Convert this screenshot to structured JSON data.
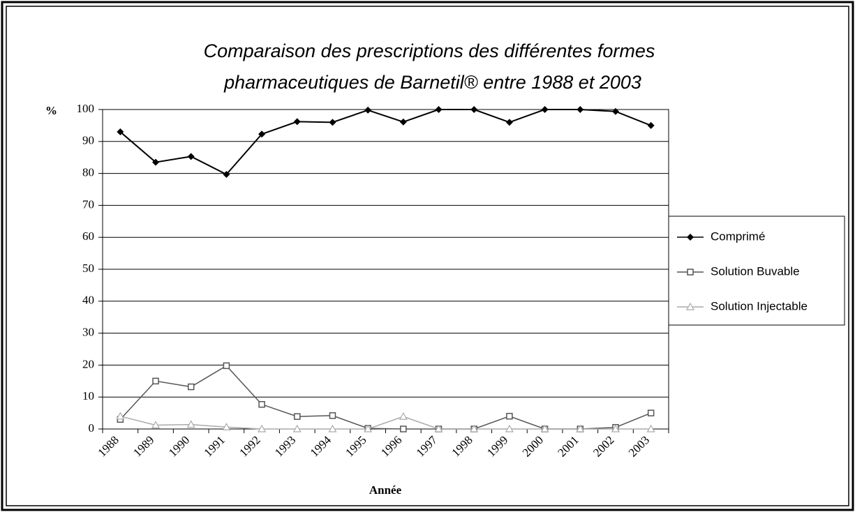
{
  "chart_data": {
    "type": "line",
    "title": [
      "Comparaison des prescriptions des différentes formes",
      "pharmaceutiques de Barnetil® entre 1988 et 2003"
    ],
    "y_label": "%",
    "x_label": "Année",
    "categories": [
      "1988",
      "1989",
      "1990",
      "1991",
      "1992",
      "1993",
      "1994",
      "1995",
      "1996",
      "1997",
      "1998",
      "1999",
      "2000",
      "2001",
      "2002",
      "2003"
    ],
    "series": [
      {
        "name": "Comprimé",
        "color": "#000000",
        "marker": "diamond",
        "values": [
          93,
          83.5,
          85.3,
          79.7,
          92.3,
          96.2,
          96,
          99.8,
          96.1,
          100,
          100,
          96,
          100,
          100,
          99.4,
          95
        ]
      },
      {
        "name": "Solution Buvable",
        "color": "#555555",
        "marker": "square",
        "values": [
          3,
          15,
          13.2,
          19.8,
          7.7,
          3.9,
          4.2,
          0.2,
          0,
          0,
          0,
          4,
          0,
          0,
          0.5,
          5
        ]
      },
      {
        "name": "Solution Injectable",
        "color": "#aaaaaa",
        "marker": "triangle",
        "values": [
          4,
          1.2,
          1.4,
          0.6,
          0,
          0,
          0,
          0,
          3.9,
          0,
          0,
          0,
          0,
          0,
          0,
          0
        ]
      }
    ],
    "ylim": [
      0,
      100
    ],
    "yticks": [
      0,
      10,
      20,
      30,
      40,
      50,
      60,
      70,
      80,
      90,
      100
    ],
    "grid": true,
    "legend": "right"
  }
}
